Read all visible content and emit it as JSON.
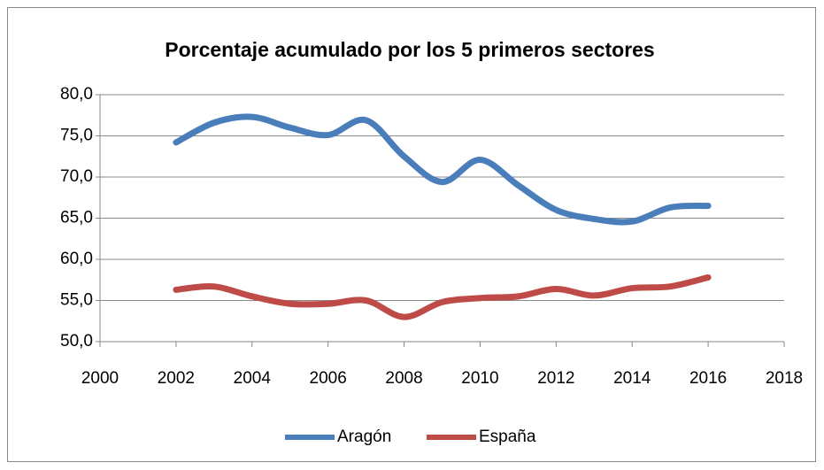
{
  "chart_data": {
    "type": "line",
    "title": "Porcentaje acumulado por los 5 primeros sectores",
    "x": [
      2002,
      2003,
      2004,
      2005,
      2006,
      2007,
      2008,
      2009,
      2010,
      2011,
      2012,
      2013,
      2014,
      2015,
      2016
    ],
    "series": [
      {
        "name": "Aragón",
        "color": "#4a7ebb",
        "values": [
          74.2,
          76.6,
          77.3,
          76.0,
          75.1,
          76.9,
          72.5,
          69.4,
          72.1,
          69.0,
          66.0,
          64.9,
          64.6,
          66.3,
          66.5
        ]
      },
      {
        "name": "España",
        "color": "#be4b48",
        "values": [
          56.3,
          56.7,
          55.5,
          54.6,
          54.6,
          55.0,
          53.0,
          54.8,
          55.3,
          55.5,
          56.4,
          55.6,
          56.5,
          56.7,
          57.8
        ]
      }
    ],
    "xlim": [
      2000,
      2018
    ],
    "xticks": [
      2000,
      2002,
      2004,
      2006,
      2008,
      2010,
      2012,
      2014,
      2016,
      2018
    ],
    "ylim": [
      50,
      80
    ],
    "yticks": [
      {
        "value": 50,
        "label": "50,0"
      },
      {
        "value": 55,
        "label": "55,0"
      },
      {
        "value": 60,
        "label": "60,0"
      },
      {
        "value": 65,
        "label": "65,0"
      },
      {
        "value": 70,
        "label": "70,0"
      },
      {
        "value": 75,
        "label": "75,0"
      },
      {
        "value": 80,
        "label": "80,0"
      }
    ],
    "grid": true,
    "legend": "bottom"
  }
}
